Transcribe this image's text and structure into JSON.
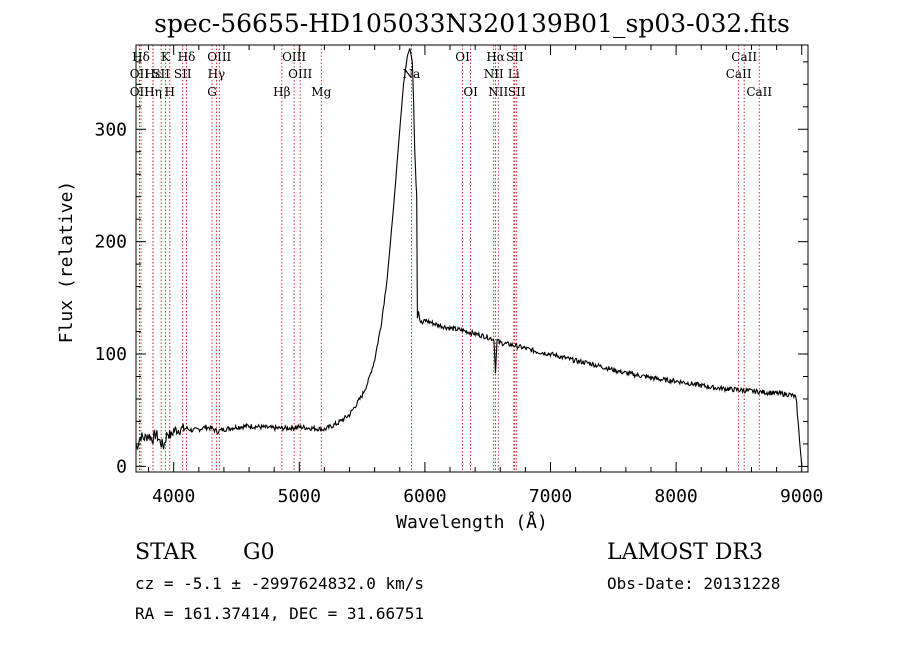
{
  "chart_data": {
    "type": "line",
    "title": "spec-56655-HD105033N320139B01_sp03-032.fits",
    "xlabel": "Wavelength (Å)",
    "ylabel": "Flux (relative)",
    "xlim": [
      3700,
      9050
    ],
    "ylim": [
      -5,
      375
    ],
    "x_ticks": [
      4000,
      5000,
      6000,
      7000,
      8000,
      9000
    ],
    "y_ticks": [
      0,
      100,
      200,
      300
    ],
    "series": [
      {
        "name": "flux",
        "x": [
          3700,
          3720,
          3740,
          3760,
          3780,
          3800,
          3830,
          3860,
          3890,
          3920,
          3950,
          3980,
          4000,
          4050,
          4100,
          4150,
          4200,
          4250,
          4300,
          4350,
          4400,
          4500,
          4600,
          4700,
          4800,
          4900,
          5000,
          5100,
          5200,
          5300,
          5400,
          5500,
          5550,
          5600,
          5650,
          5700,
          5750,
          5800,
          5830,
          5860,
          5880,
          5900,
          5910,
          5915,
          5920,
          5925,
          5930,
          5935,
          5940,
          5950,
          5960,
          5980,
          6000,
          6100,
          6200,
          6300,
          6400,
          6500,
          6550,
          6562,
          6575,
          6600,
          6700,
          6800,
          6900,
          7000,
          7100,
          7200,
          7300,
          7400,
          7500,
          7600,
          7700,
          7800,
          7900,
          8000,
          8100,
          8200,
          8300,
          8400,
          8500,
          8600,
          8700,
          8800,
          8900,
          8950,
          8960,
          8970,
          8990,
          9000
        ],
        "y": [
          15,
          22,
          27,
          25,
          26,
          28,
          24,
          29,
          22,
          18,
          30,
          27,
          32,
          33,
          34,
          32,
          33,
          35,
          34,
          31,
          33,
          35,
          36,
          35,
          34,
          34,
          35,
          34,
          33,
          38,
          46,
          63,
          76,
          95,
          125,
          168,
          230,
          300,
          340,
          365,
          372,
          360,
          325,
          300,
          280,
          265,
          250,
          242,
          132,
          138,
          130,
          127,
          130,
          126,
          123,
          121,
          118,
          115,
          113,
          85,
          112,
          110,
          108,
          105,
          102,
          100,
          97,
          94,
          92,
          89,
          86,
          83,
          81,
          79,
          77,
          76,
          74,
          72,
          70,
          69,
          68,
          67,
          66,
          65,
          64,
          62,
          55,
          40,
          15,
          0
        ]
      }
    ],
    "lines": [
      {
        "name": "Hδ",
        "x": 3740,
        "row": 0
      },
      {
        "name": "OII",
        "x": 3727,
        "row": 1
      },
      {
        "name": "OII",
        "x": 3727,
        "row": 2
      },
      {
        "name": "Hε",
        "x": 3835,
        "row": 1
      },
      {
        "name": "Hη",
        "x": 3835,
        "row": 2
      },
      {
        "name": "K",
        "x": 3934,
        "row": 0
      },
      {
        "name": "SII",
        "x": 3900,
        "row": 1
      },
      {
        "name": "H",
        "x": 3969,
        "row": 2
      },
      {
        "name": "Hδ",
        "x": 4102,
        "row": 0
      },
      {
        "name": "SII",
        "x": 4072,
        "row": 1
      },
      {
        "name": "OIII",
        "x": 4363,
        "row": 0
      },
      {
        "name": "Hγ",
        "x": 4340,
        "row": 1
      },
      {
        "name": "G",
        "x": 4305,
        "row": 2
      },
      {
        "name": "Hβ",
        "x": 4861,
        "row": 2
      },
      {
        "name": "OIII",
        "x": 4959,
        "row": 0
      },
      {
        "name": "OIII",
        "x": 5007,
        "row": 1
      },
      {
        "name": "Mg",
        "x": 5175,
        "row": 2
      },
      {
        "name": "Na",
        "x": 5893,
        "row": 1
      },
      {
        "name": "OI",
        "x": 6300,
        "row": 0
      },
      {
        "name": "OI",
        "x": 6364,
        "row": 2
      },
      {
        "name": "Hα",
        "x": 6563,
        "row": 0
      },
      {
        "name": "NII",
        "x": 6548,
        "row": 1
      },
      {
        "name": "NII",
        "x": 6584,
        "row": 2
      },
      {
        "name": "SII",
        "x": 6716,
        "row": 0
      },
      {
        "name": "Li",
        "x": 6708,
        "row": 1
      },
      {
        "name": "SII",
        "x": 6731,
        "row": 2
      },
      {
        "name": "CaII",
        "x": 8542,
        "row": 0
      },
      {
        "name": "CaII",
        "x": 8498,
        "row": 1
      },
      {
        "name": "CaII",
        "x": 8662,
        "row": 2
      }
    ]
  },
  "info": {
    "object_type": "STAR",
    "subclass": "G0",
    "survey": "LAMOST DR3",
    "cz": "cz = -5.1 ± -2997624832.0 km/s",
    "obs_date": "Obs-Date: 20131228",
    "radec": "RA = 161.37414, DEC =  31.66751"
  },
  "colors": {
    "line_marker": "#cc0000",
    "spectrum": "#000000"
  }
}
